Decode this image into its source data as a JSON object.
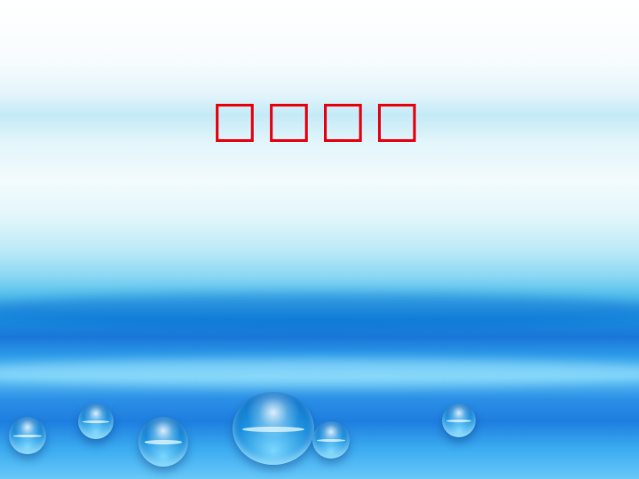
{
  "slide": {
    "title": "□□□□",
    "title_color": "#e60012"
  }
}
